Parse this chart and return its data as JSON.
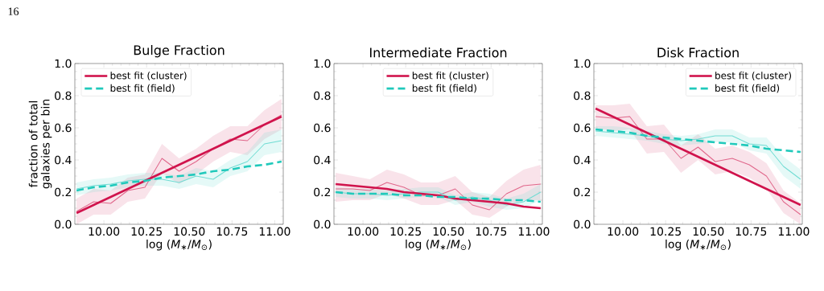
{
  "chart_data": [
    {
      "type": "line",
      "title": "Bulge Fraction",
      "xlabel": "log (*M*$_{∗}$/*M*$_{⊙}$)",
      "ylabel": "fraction of total galaxies per bin",
      "annotations": [
        "16"
      ],
      "x": [
        9.84,
        9.94,
        10.04,
        10.14,
        10.24,
        10.34,
        10.44,
        10.54,
        10.64,
        10.74,
        10.84,
        10.94,
        11.04
      ],
      "xlim": [
        9.83,
        11.05
      ],
      "ylim": [
        0,
        1
      ],
      "xticks": [
        {
          "value": 10,
          "label": "10.00"
        },
        {
          "value": 10.25,
          "label": "10.25"
        },
        {
          "value": 10.5,
          "label": "10.50"
        },
        {
          "value": 10.75,
          "label": "10.75"
        },
        {
          "value": 11,
          "label": "11.00"
        }
      ],
      "yticks": [
        {
          "value": 0,
          "label": "0.0"
        },
        {
          "value": 0.2,
          "label": "0.2"
        },
        {
          "value": 0.4,
          "label": "0.4"
        },
        {
          "value": 0.6,
          "label": "0.6"
        },
        {
          "value": 0.8,
          "label": "0.8"
        },
        {
          "value": 1,
          "label": "1.0"
        }
      ],
      "legend": "top left",
      "series": [
        {
          "color": "#e0668a",
          "values": [
            0.08,
            0.14,
            0.13,
            0.21,
            0.23,
            0.41,
            0.33,
            0.39,
            0.47,
            0.53,
            0.52,
            0.62,
            0.68
          ],
          "lower": [
            0.0,
            0.06,
            0.06,
            0.14,
            0.16,
            0.32,
            0.25,
            0.31,
            0.39,
            0.45,
            0.43,
            0.53,
            0.59
          ],
          "upper": [
            0.16,
            0.22,
            0.21,
            0.29,
            0.31,
            0.5,
            0.41,
            0.47,
            0.55,
            0.61,
            0.61,
            0.71,
            0.78
          ]
        },
        {
          "color": "#70dcd3",
          "values": [
            0.22,
            0.24,
            0.25,
            0.27,
            0.28,
            0.28,
            0.26,
            0.3,
            0.28,
            0.35,
            0.39,
            0.5,
            0.52
          ],
          "lower": [
            0.18,
            0.2,
            0.21,
            0.23,
            0.24,
            0.24,
            0.22,
            0.25,
            0.23,
            0.3,
            0.33,
            0.43,
            0.45
          ],
          "upper": [
            0.26,
            0.28,
            0.29,
            0.31,
            0.32,
            0.32,
            0.3,
            0.35,
            0.33,
            0.4,
            0.45,
            0.57,
            0.59
          ]
        },
        {
          "name": "best fit (cluster)",
          "color": "#d0134c",
          "values": [
            0.07,
            0.12,
            0.17,
            0.22,
            0.27,
            0.32,
            0.37,
            0.42,
            0.47,
            0.52,
            0.57,
            0.62,
            0.67
          ],
          "line_style": "solid"
        },
        {
          "name": "best fit (field)",
          "color": "#20c9bb",
          "values": [
            0.21,
            0.23,
            0.24,
            0.26,
            0.27,
            0.29,
            0.3,
            0.31,
            0.33,
            0.34,
            0.36,
            0.37,
            0.39
          ],
          "line_style": "dashed"
        }
      ]
    },
    {
      "type": "line",
      "title": "Intermediate Fraction",
      "xlabel": "log (*M*$_{∗}$/*M*$_{⊙}$)",
      "x": [
        9.84,
        9.94,
        10.04,
        10.14,
        10.24,
        10.34,
        10.44,
        10.54,
        10.64,
        10.74,
        10.84,
        10.94,
        11.04
      ],
      "xlim": [
        9.83,
        11.05
      ],
      "ylim": [
        0,
        1
      ],
      "xticks": [
        {
          "value": 10,
          "label": "10.00"
        },
        {
          "value": 10.25,
          "label": "10.25"
        },
        {
          "value": 10.5,
          "label": "10.50"
        },
        {
          "value": 10.75,
          "label": "10.75"
        },
        {
          "value": 11,
          "label": "11.00"
        }
      ],
      "yticks": [
        {
          "value": 0,
          "label": "0.0"
        },
        {
          "value": 0.2,
          "label": "0.2"
        },
        {
          "value": 0.4,
          "label": "0.4"
        },
        {
          "value": 0.6,
          "label": "0.6"
        },
        {
          "value": 0.8,
          "label": "0.8"
        },
        {
          "value": 1,
          "label": "1.0"
        }
      ],
      "legend": "top",
      "series": [
        {
          "color": "#e0668a",
          "values": [
            0.22,
            0.22,
            0.21,
            0.26,
            0.23,
            0.18,
            0.18,
            0.22,
            0.12,
            0.09,
            0.19,
            0.24,
            0.25
          ],
          "lower": [
            0.14,
            0.15,
            0.15,
            0.19,
            0.16,
            0.12,
            0.12,
            0.15,
            0.06,
            0.04,
            0.11,
            0.15,
            0.15
          ],
          "upper": [
            0.32,
            0.3,
            0.28,
            0.34,
            0.31,
            0.26,
            0.26,
            0.3,
            0.2,
            0.17,
            0.27,
            0.34,
            0.37
          ]
        },
        {
          "color": "#70dcd3",
          "values": [
            0.2,
            0.19,
            0.19,
            0.18,
            0.19,
            0.2,
            0.2,
            0.15,
            0.17,
            0.15,
            0.12,
            0.14,
            0.2
          ],
          "lower": [
            0.17,
            0.16,
            0.16,
            0.15,
            0.16,
            0.17,
            0.17,
            0.12,
            0.14,
            0.11,
            0.09,
            0.1,
            0.15
          ],
          "upper": [
            0.23,
            0.22,
            0.22,
            0.21,
            0.22,
            0.23,
            0.23,
            0.18,
            0.2,
            0.19,
            0.16,
            0.19,
            0.25
          ]
        },
        {
          "name": "best fit (cluster)",
          "color": "#d0134c",
          "values": [
            0.25,
            0.24,
            0.23,
            0.22,
            0.2,
            0.19,
            0.18,
            0.16,
            0.15,
            0.14,
            0.13,
            0.11,
            0.1
          ],
          "line_style": "solid"
        },
        {
          "name": "best fit (field)",
          "color": "#20c9bb",
          "values": [
            0.2,
            0.19,
            0.19,
            0.19,
            0.18,
            0.18,
            0.17,
            0.17,
            0.16,
            0.16,
            0.15,
            0.15,
            0.14
          ],
          "line_style": "dashed"
        }
      ]
    },
    {
      "type": "line",
      "title": "Disk Fraction",
      "xlabel": "log (*M*$_{∗}$/*M*$_{⊙}$)",
      "x": [
        9.84,
        9.94,
        10.04,
        10.14,
        10.24,
        10.34,
        10.44,
        10.54,
        10.64,
        10.74,
        10.84,
        10.94,
        11.04
      ],
      "xlim": [
        9.83,
        11.05
      ],
      "ylim": [
        0,
        1
      ],
      "xticks": [
        {
          "value": 10,
          "label": "10.00"
        },
        {
          "value": 10.25,
          "label": "10.25"
        },
        {
          "value": 10.5,
          "label": "10.50"
        },
        {
          "value": 10.75,
          "label": "10.75"
        },
        {
          "value": 11,
          "label": "11.00"
        }
      ],
      "yticks": [
        {
          "value": 0,
          "label": "0.0"
        },
        {
          "value": 0.2,
          "label": "0.2"
        },
        {
          "value": 0.4,
          "label": "0.4"
        },
        {
          "value": 0.6,
          "label": "0.6"
        },
        {
          "value": 0.8,
          "label": "0.8"
        },
        {
          "value": 1,
          "label": "1.0"
        }
      ],
      "legend": "top right",
      "series": [
        {
          "color": "#e0668a",
          "values": [
            0.67,
            0.66,
            0.67,
            0.53,
            0.53,
            0.41,
            0.48,
            0.39,
            0.41,
            0.37,
            0.3,
            0.14,
            0.06
          ],
          "lower": [
            0.6,
            0.58,
            0.59,
            0.44,
            0.45,
            0.32,
            0.4,
            0.31,
            0.33,
            0.29,
            0.22,
            0.07,
            0.0
          ],
          "upper": [
            0.74,
            0.74,
            0.75,
            0.61,
            0.62,
            0.49,
            0.56,
            0.47,
            0.49,
            0.45,
            0.38,
            0.21,
            0.13
          ]
        },
        {
          "color": "#70dcd3",
          "values": [
            0.58,
            0.57,
            0.56,
            0.55,
            0.53,
            0.52,
            0.53,
            0.55,
            0.55,
            0.5,
            0.49,
            0.36,
            0.28
          ],
          "lower": [
            0.55,
            0.54,
            0.53,
            0.52,
            0.5,
            0.49,
            0.5,
            0.51,
            0.51,
            0.46,
            0.44,
            0.3,
            0.22
          ],
          "upper": [
            0.61,
            0.61,
            0.6,
            0.58,
            0.56,
            0.55,
            0.56,
            0.59,
            0.59,
            0.54,
            0.54,
            0.42,
            0.34
          ]
        },
        {
          "name": "best fit (cluster)",
          "color": "#d0134c",
          "values": [
            0.72,
            0.67,
            0.62,
            0.57,
            0.52,
            0.47,
            0.42,
            0.37,
            0.32,
            0.27,
            0.22,
            0.17,
            0.12
          ],
          "line_style": "solid"
        },
        {
          "name": "best fit (field)",
          "color": "#20c9bb",
          "values": [
            0.59,
            0.58,
            0.57,
            0.55,
            0.54,
            0.53,
            0.52,
            0.51,
            0.5,
            0.49,
            0.47,
            0.46,
            0.45
          ],
          "line_style": "dashed"
        }
      ]
    }
  ]
}
